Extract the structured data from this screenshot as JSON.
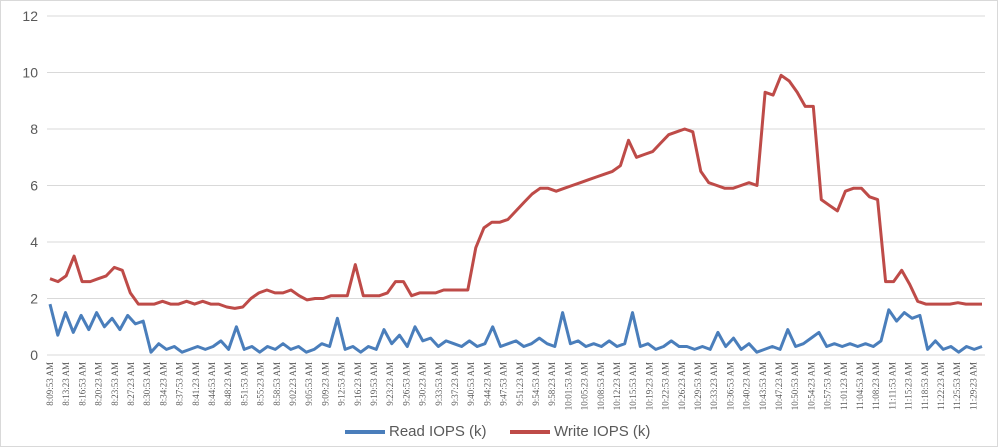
{
  "chart_data": {
    "type": "line",
    "title": "",
    "xlabel": "",
    "ylabel": "",
    "ylim": [
      0,
      12
    ],
    "yticks": [
      0,
      2,
      4,
      6,
      8,
      10,
      12
    ],
    "grid": true,
    "legend_position": "bottom",
    "x_tick_labels": [
      "8:09:53 AM",
      "8:13:23 AM",
      "8:16:53 AM",
      "8:20:23 AM",
      "8:23:53 AM",
      "8:27:23 AM",
      "8:30:53 AM",
      "8:34:23 AM",
      "8:37:53 AM",
      "8:41:23 AM",
      "8:44:53 AM",
      "8:48:23 AM",
      "8:51:53 AM",
      "8:55:23 AM",
      "8:58:53 AM",
      "9:02:23 AM",
      "9:05:53 AM",
      "9:09:23 AM",
      "9:12:53 AM",
      "9:16:23 AM",
      "9:19:53 AM",
      "9:23:23 AM",
      "9:26:53 AM",
      "9:30:23 AM",
      "9:33:53 AM",
      "9:37:23 AM",
      "9:40:53 AM",
      "9:44:23 AM",
      "9:47:53 AM",
      "9:51:23 AM",
      "9:54:53 AM",
      "9:58:23 AM",
      "10:01:53 AM",
      "10:05:23 AM",
      "10:08:53 AM",
      "10:12:23 AM",
      "10:15:53 AM",
      "10:19:23 AM",
      "10:22:53 AM",
      "10:26:23 AM",
      "10:29:53 AM",
      "10:33:23 AM",
      "10:36:53 AM",
      "10:40:23 AM",
      "10:43:53 AM",
      "10:47:23 AM",
      "10:50:53 AM",
      "10:54:23 AM",
      "10:57:53 AM",
      "11:01:23 AM",
      "11:04:53 AM",
      "11:08:23 AM",
      "11:11:53 AM",
      "11:15:23 AM",
      "11:18:53 AM",
      "11:22:23 AM",
      "11:25:53 AM",
      "11:29:23 AM"
    ],
    "series": [
      {
        "name": "Read IOPS (k)",
        "color": "#4a7ebb",
        "values": [
          1.8,
          0.7,
          1.5,
          0.8,
          1.4,
          0.9,
          1.5,
          1.0,
          1.3,
          0.9,
          1.4,
          1.1,
          1.2,
          0.1,
          0.4,
          0.2,
          0.3,
          0.1,
          0.2,
          0.3,
          0.2,
          0.3,
          0.5,
          0.2,
          1.0,
          0.2,
          0.3,
          0.1,
          0.3,
          0.2,
          0.4,
          0.2,
          0.3,
          0.1,
          0.2,
          0.4,
          0.3,
          1.3,
          0.2,
          0.3,
          0.1,
          0.3,
          0.2,
          0.9,
          0.4,
          0.7,
          0.3,
          1.0,
          0.5,
          0.6,
          0.3,
          0.5,
          0.4,
          0.3,
          0.5,
          0.3,
          0.4,
          1.0,
          0.3,
          0.4,
          0.5,
          0.3,
          0.4,
          0.6,
          0.4,
          0.3,
          1.5,
          0.4,
          0.5,
          0.3,
          0.4,
          0.3,
          0.5,
          0.3,
          0.4,
          1.5,
          0.3,
          0.4,
          0.2,
          0.3,
          0.5,
          0.3,
          0.3,
          0.2,
          0.3,
          0.2,
          0.8,
          0.3,
          0.6,
          0.2,
          0.4,
          0.1,
          0.2,
          0.3,
          0.2,
          0.9,
          0.3,
          0.4,
          0.6,
          0.8,
          0.3,
          0.4,
          0.3,
          0.4,
          0.3,
          0.4,
          0.3,
          0.5,
          1.6,
          1.2,
          1.5,
          1.3,
          1.4,
          0.2,
          0.5,
          0.2,
          0.3,
          0.1,
          0.3,
          0.2,
          0.3
        ]
      },
      {
        "name": "Write IOPS (k)",
        "color": "#be4b48",
        "values": [
          2.7,
          2.6,
          2.8,
          3.5,
          2.6,
          2.6,
          2.7,
          2.8,
          3.1,
          3.0,
          2.2,
          1.8,
          1.8,
          1.8,
          1.9,
          1.8,
          1.8,
          1.9,
          1.8,
          1.9,
          1.8,
          1.8,
          1.7,
          1.65,
          1.7,
          2.0,
          2.2,
          2.3,
          2.2,
          2.2,
          2.3,
          2.1,
          1.95,
          2.0,
          2.0,
          2.1,
          2.1,
          2.1,
          3.2,
          2.1,
          2.1,
          2.1,
          2.2,
          2.6,
          2.6,
          2.1,
          2.2,
          2.2,
          2.2,
          2.3,
          2.3,
          2.3,
          2.3,
          3.8,
          4.5,
          4.7,
          4.7,
          4.8,
          5.1,
          5.4,
          5.7,
          5.9,
          5.9,
          5.8,
          5.9,
          6.0,
          6.1,
          6.2,
          6.3,
          6.4,
          6.5,
          6.7,
          7.6,
          7.0,
          7.1,
          7.2,
          7.5,
          7.8,
          7.9,
          8.0,
          7.9,
          6.5,
          6.1,
          6.0,
          5.9,
          5.9,
          6.0,
          6.1,
          6.0,
          9.3,
          9.2,
          9.9,
          9.7,
          9.3,
          8.8,
          8.8,
          5.5,
          5.3,
          5.1,
          5.8,
          5.9,
          5.9,
          5.6,
          5.5,
          2.6,
          2.6,
          3.0,
          2.5,
          1.9,
          1.8,
          1.8,
          1.8,
          1.8,
          1.85,
          1.8,
          1.8,
          1.8
        ]
      }
    ]
  }
}
